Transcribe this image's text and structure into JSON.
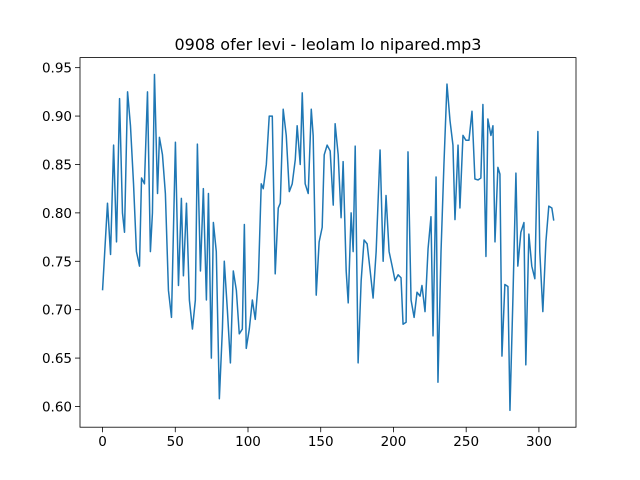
{
  "chart_data": {
    "type": "line",
    "title": "0908 ofer levi - leolam lo nipared.mp3",
    "x": [
      0,
      3.4,
      5.5,
      7.6,
      9.6,
      11.7,
      13.7,
      15.1,
      17.2,
      19.2,
      21.3,
      23.3,
      25.4,
      26.8,
      28.8,
      30.9,
      32.9,
      34.3,
      35.7,
      37.8,
      39.1,
      41.2,
      43.2,
      45.3,
      47.4,
      50.1,
      52.2,
      54.2,
      55.6,
      57.7,
      59.7,
      61.8,
      63.8,
      65.2,
      67.3,
      69.3,
      71.4,
      72.8,
      74.8,
      76.2,
      78.2,
      80.3,
      82.4,
      83.7,
      85.8,
      87.9,
      89.9,
      92.0,
      94.0,
      96.1,
      97.5,
      98.8,
      100.9,
      103.0,
      105.0,
      107.1,
      109.1,
      110.5,
      112.6,
      114.6,
      116.7,
      118.7,
      120.8,
      122.2,
      124.2,
      126.3,
      128.4,
      130.4,
      132.5,
      133.8,
      135.9,
      137.3,
      139.3,
      141.4,
      143.5,
      144.8,
      146.9,
      148.9,
      151.0,
      152.4,
      154.4,
      156.5,
      158.6,
      159.9,
      162.0,
      164.0,
      165.4,
      167.5,
      168.9,
      170.9,
      172.3,
      173.7,
      175.7,
      177.8,
      179.8,
      181.9,
      184.0,
      186.0,
      188.1,
      190.8,
      192.9,
      194.9,
      197.0,
      199.1,
      201.1,
      203.2,
      205.2,
      206.6,
      208.7,
      210.0,
      212.1,
      214.2,
      216.2,
      218.3,
      219.6,
      221.7,
      223.8,
      225.8,
      227.2,
      229.3,
      230.6,
      232.7,
      234.7,
      236.8,
      238.9,
      240.9,
      242.3,
      244.4,
      245.7,
      247.8,
      249.8,
      251.9,
      254.0,
      256.0,
      258.1,
      260.1,
      261.5,
      263.6,
      264.9,
      267.0,
      268.4,
      269.8,
      271.8,
      273.2,
      274.6,
      276.6,
      278.7,
      280.1,
      282.1,
      284.2,
      285.5,
      287.6,
      289.7,
      291.0,
      293.1,
      295.1,
      297.2,
      299.3,
      300.6,
      302.7,
      304.8,
      306.8,
      308.9,
      310.2
    ],
    "series": [
      {
        "color": "#1f77b4",
        "values": [
          0.72,
          0.81,
          0.757,
          0.87,
          0.77,
          0.918,
          0.8,
          0.78,
          0.925,
          0.89,
          0.83,
          0.76,
          0.745,
          0.836,
          0.83,
          0.925,
          0.76,
          0.8,
          0.943,
          0.82,
          0.878,
          0.86,
          0.82,
          0.72,
          0.692,
          0.873,
          0.725,
          0.815,
          0.735,
          0.81,
          0.71,
          0.68,
          0.71,
          0.871,
          0.74,
          0.825,
          0.71,
          0.82,
          0.65,
          0.79,
          0.76,
          0.608,
          0.68,
          0.75,
          0.7,
          0.645,
          0.74,
          0.72,
          0.675,
          0.68,
          0.788,
          0.66,
          0.68,
          0.71,
          0.69,
          0.73,
          0.83,
          0.825,
          0.85,
          0.9,
          0.9,
          0.737,
          0.805,
          0.81,
          0.907,
          0.88,
          0.822,
          0.83,
          0.855,
          0.89,
          0.85,
          0.924,
          0.83,
          0.82,
          0.907,
          0.88,
          0.715,
          0.77,
          0.785,
          0.86,
          0.87,
          0.864,
          0.808,
          0.892,
          0.86,
          0.795,
          0.853,
          0.74,
          0.707,
          0.8,
          0.76,
          0.869,
          0.645,
          0.73,
          0.772,
          0.768,
          0.74,
          0.712,
          0.76,
          0.865,
          0.75,
          0.818,
          0.76,
          0.745,
          0.73,
          0.736,
          0.733,
          0.685,
          0.687,
          0.863,
          0.71,
          0.692,
          0.718,
          0.714,
          0.725,
          0.698,
          0.763,
          0.796,
          0.673,
          0.837,
          0.625,
          0.76,
          0.85,
          0.933,
          0.895,
          0.87,
          0.793,
          0.87,
          0.805,
          0.88,
          0.875,
          0.875,
          0.905,
          0.835,
          0.834,
          0.836,
          0.912,
          0.755,
          0.897,
          0.88,
          0.89,
          0.77,
          0.847,
          0.84,
          0.652,
          0.726,
          0.724,
          0.596,
          0.71,
          0.841,
          0.745,
          0.78,
          0.79,
          0.643,
          0.778,
          0.745,
          0.732,
          0.884,
          0.76,
          0.698,
          0.77,
          0.807,
          0.805,
          0.792
        ]
      }
    ],
    "xlim": [
      -15.5,
      325.5
    ],
    "ylim": [
      0.5786,
      0.9604
    ],
    "xticks": [
      0,
      50,
      100,
      150,
      200,
      250,
      300
    ],
    "yticks": [
      {
        "value": 0.6,
        "label": "0.60"
      },
      {
        "value": 0.65,
        "label": "0.65"
      },
      {
        "value": 0.7,
        "label": "0.70"
      },
      {
        "value": 0.75,
        "label": "0.75"
      },
      {
        "value": 0.8,
        "label": "0.80"
      },
      {
        "value": 0.85,
        "label": "0.85"
      },
      {
        "value": 0.9,
        "label": "0.90"
      },
      {
        "value": 0.95,
        "label": "0.95"
      }
    ]
  }
}
